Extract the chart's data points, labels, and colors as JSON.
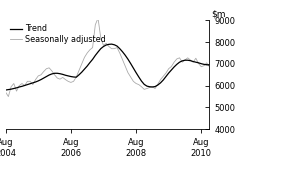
{
  "ylim": [
    4000,
    9000
  ],
  "yticks": [
    4000,
    5000,
    6000,
    7000,
    8000,
    9000
  ],
  "xtick_labels": [
    "Aug\n2004",
    "Aug\n2006",
    "Aug\n2008",
    "Aug\n2010"
  ],
  "xtick_pos": [
    0,
    24,
    48,
    72
  ],
  "xlim": [
    0,
    75
  ],
  "trend_color": "#000000",
  "sa_color": "#aaaaaa",
  "legend_labels": [
    "Trend",
    "Seasonally adjusted"
  ],
  "trend_x": [
    0,
    1,
    2,
    3,
    4,
    5,
    6,
    7,
    8,
    9,
    10,
    11,
    12,
    13,
    14,
    15,
    16,
    17,
    18,
    19,
    20,
    21,
    22,
    23,
    24,
    25,
    26,
    27,
    28,
    29,
    30,
    31,
    32,
    33,
    34,
    35,
    36,
    37,
    38,
    39,
    40,
    41,
    42,
    43,
    44,
    45,
    46,
    47,
    48,
    49,
    50,
    51,
    52,
    53,
    54,
    55,
    56,
    57,
    58,
    59,
    60,
    61,
    62,
    63,
    64,
    65,
    66,
    67,
    68,
    69,
    70,
    71,
    72,
    73,
    74,
    75
  ],
  "trend_y": [
    5800,
    5820,
    5840,
    5870,
    5900,
    5940,
    5970,
    6010,
    6050,
    6090,
    6130,
    6170,
    6220,
    6280,
    6350,
    6420,
    6490,
    6540,
    6570,
    6570,
    6550,
    6520,
    6480,
    6450,
    6420,
    6400,
    6390,
    6500,
    6620,
    6760,
    6900,
    7060,
    7210,
    7390,
    7550,
    7700,
    7800,
    7870,
    7900,
    7910,
    7880,
    7820,
    7700,
    7560,
    7400,
    7220,
    7020,
    6810,
    6600,
    6400,
    6210,
    6060,
    5980,
    5950,
    5940,
    5960,
    6030,
    6130,
    6260,
    6420,
    6580,
    6720,
    6860,
    6980,
    7080,
    7140,
    7170,
    7170,
    7150,
    7110,
    7080,
    7050,
    7010,
    6980,
    6960,
    6950
  ],
  "sa_x": [
    0,
    1,
    2,
    3,
    4,
    5,
    6,
    7,
    8,
    9,
    10,
    11,
    12,
    13,
    14,
    15,
    16,
    17,
    18,
    19,
    20,
    21,
    22,
    23,
    24,
    25,
    26,
    27,
    28,
    29,
    30,
    31,
    32,
    33,
    34,
    35,
    36,
    37,
    38,
    39,
    40,
    41,
    42,
    43,
    44,
    45,
    46,
    47,
    48,
    49,
    50,
    51,
    52,
    53,
    54,
    55,
    56,
    57,
    58,
    59,
    60,
    61,
    62,
    63,
    64,
    65,
    66,
    67,
    68,
    69,
    70,
    71,
    72,
    73,
    74,
    75
  ],
  "sa_y": [
    5700,
    5500,
    5950,
    6100,
    5750,
    6000,
    6100,
    6000,
    6200,
    6200,
    6050,
    6280,
    6450,
    6500,
    6650,
    6780,
    6820,
    6680,
    6500,
    6350,
    6300,
    6380,
    6280,
    6200,
    6150,
    6200,
    6400,
    6700,
    7000,
    7300,
    7500,
    7650,
    7750,
    8800,
    9100,
    8200,
    7850,
    7950,
    7800,
    7700,
    7700,
    7750,
    7500,
    7200,
    6900,
    6600,
    6400,
    6200,
    6100,
    6050,
    5950,
    5830,
    5870,
    5920,
    5950,
    5870,
    6070,
    6280,
    6430,
    6580,
    6780,
    6880,
    7080,
    7230,
    7280,
    7080,
    7180,
    7280,
    7180,
    7080,
    7260,
    7020,
    6870,
    6920,
    7050,
    6870
  ]
}
